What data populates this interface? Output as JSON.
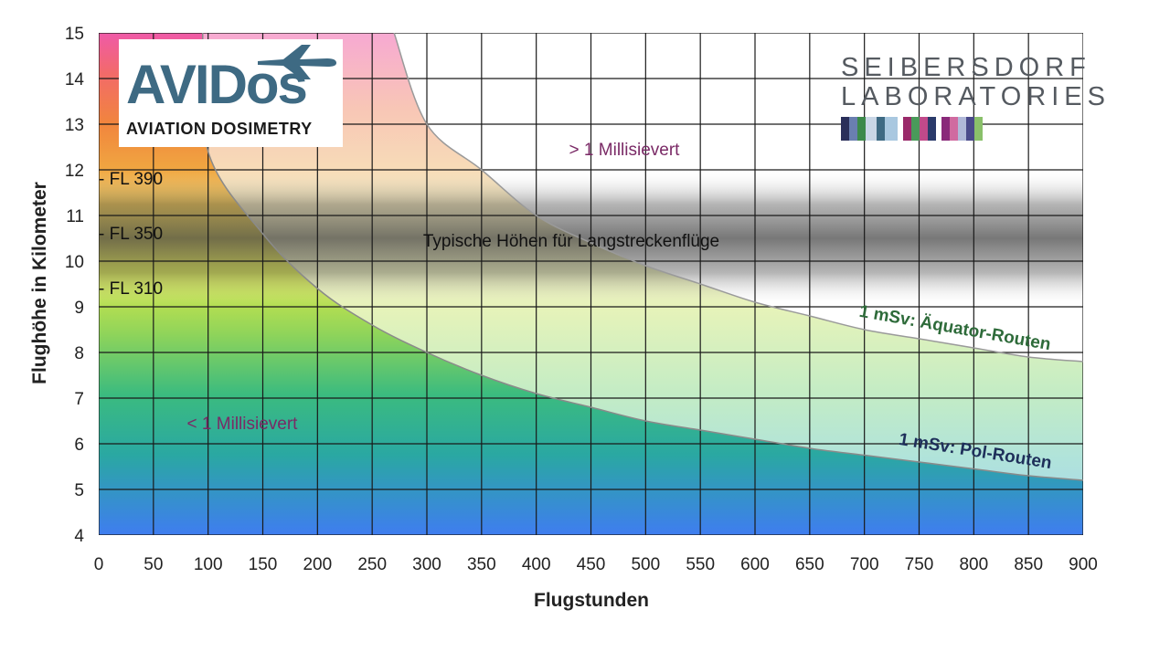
{
  "chart_data": {
    "type": "area",
    "xlabel": "Flugstunden",
    "ylabel": "Flughöhe in Kilometer",
    "xlim": [
      0,
      900
    ],
    "ylim": [
      4,
      15
    ],
    "xticks": [
      0,
      50,
      100,
      150,
      200,
      250,
      300,
      350,
      400,
      450,
      500,
      550,
      600,
      650,
      700,
      750,
      800,
      850,
      900
    ],
    "yticks": [
      4,
      5,
      6,
      7,
      8,
      9,
      10,
      11,
      12,
      13,
      14,
      15
    ],
    "grid": true,
    "series": [
      {
        "name": "1 mSv: Äquator-Routen",
        "x": [
          270,
          300,
          350,
          400,
          450,
          500,
          550,
          600,
          650,
          700,
          750,
          800,
          850,
          900
        ],
        "y": [
          15,
          13.0,
          12.0,
          11.0,
          10.4,
          9.9,
          9.5,
          9.1,
          8.8,
          8.5,
          8.3,
          8.1,
          7.9,
          7.8
        ]
      },
      {
        "name": "1 mSv: Pol-Routen",
        "x": [
          95,
          100,
          150,
          200,
          250,
          300,
          350,
          400,
          450,
          500,
          550,
          600,
          650,
          700,
          750,
          800,
          850,
          900
        ],
        "y": [
          15,
          12.4,
          10.6,
          9.4,
          8.6,
          8.0,
          7.5,
          7.1,
          6.8,
          6.5,
          6.3,
          6.1,
          5.9,
          5.75,
          5.6,
          5.45,
          5.3,
          5.2
        ]
      }
    ],
    "band": {
      "from": 9,
      "to": 12,
      "label": "Typische Höhen für Langstreckenflüge"
    },
    "flight_levels": [
      {
        "label": "- FL 390",
        "km": 11.9
      },
      {
        "label": "- FL 350",
        "km": 10.7
      },
      {
        "label": "- FL 310",
        "km": 9.45
      }
    ],
    "annotations": {
      "above": "> 1 Millisievert",
      "below": "< 1 Millisievert",
      "equator": "1 mSv: Äquator-Routen",
      "polar": "1 mSv: Pol-Routen"
    }
  },
  "logos": {
    "avidos_word": "AVIDos",
    "avidos_sub": "AVIATION DOSIMETRY",
    "seib_line1": "SEIBERSDORF",
    "seib_line2": "LABORATORIES"
  },
  "colors": {
    "grid": "#1a1a1a",
    "equator_text": "#2e6b3a",
    "polar_text": "#1e2f5a",
    "annotation_text": "#7a2a66",
    "axis_text": "#222222",
    "avidos_blue": "#3e6a83"
  }
}
